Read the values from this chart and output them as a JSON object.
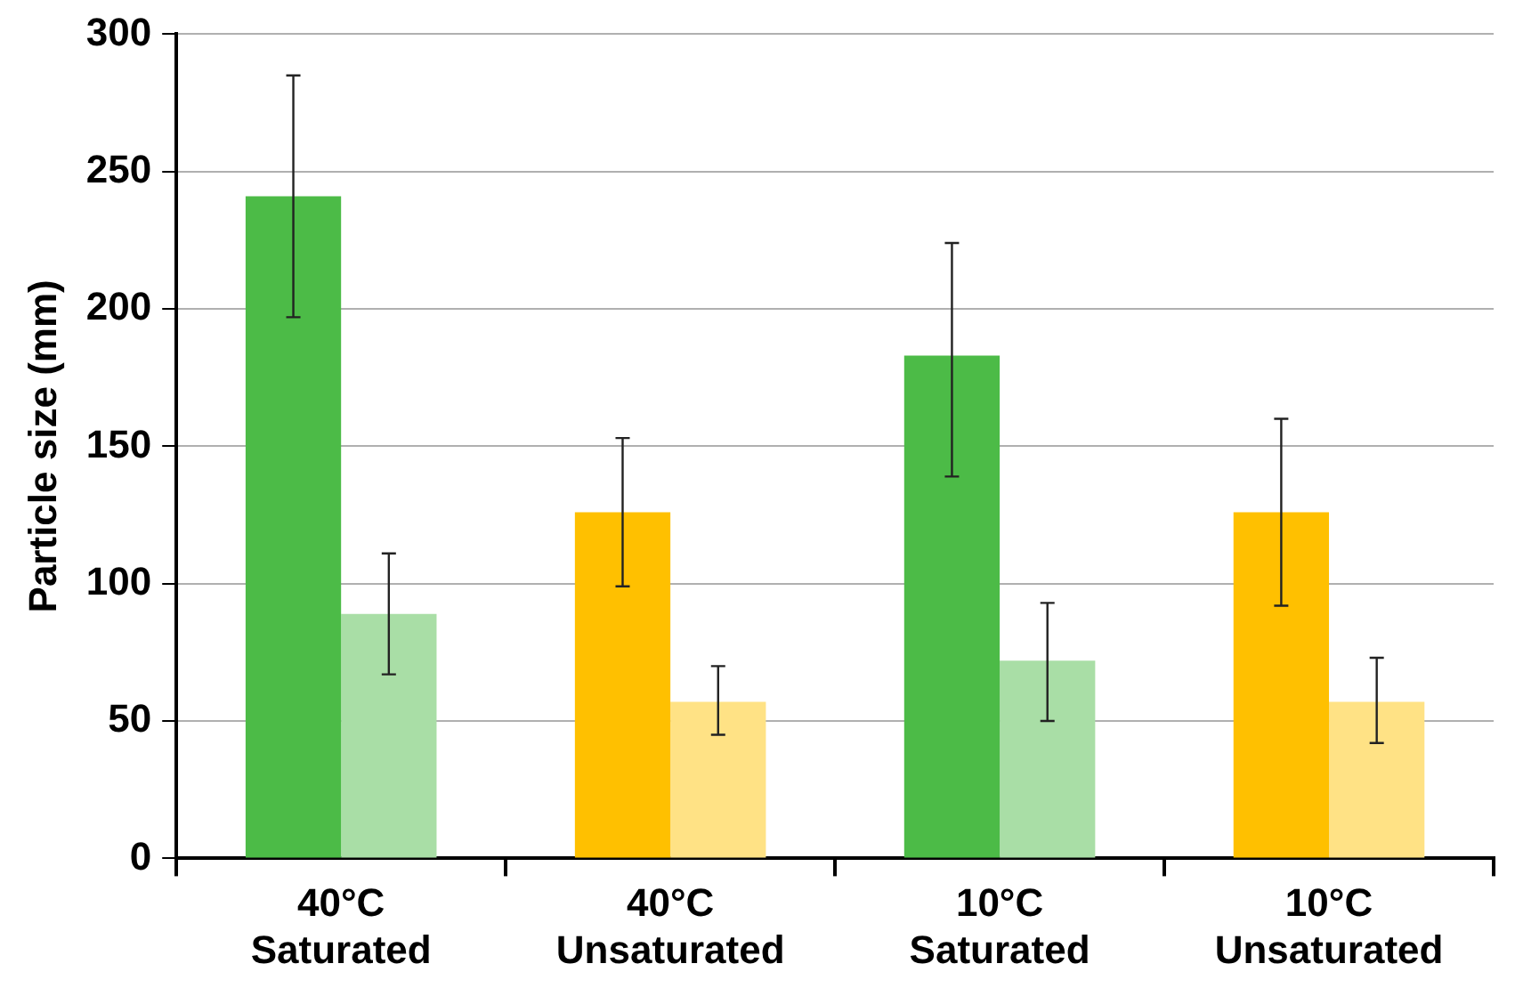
{
  "chart_data": {
    "type": "bar",
    "ylabel": "Particle size (mm)",
    "categories": [
      "40°C\nSaturated",
      "40°C\nUnsaturated",
      "10°C\nSaturated",
      "10°C\nUnsaturated"
    ],
    "series": [
      {
        "colors": [
          "#4cbb47",
          "#ffc000",
          "#4cbb47",
          "#ffc000"
        ],
        "values": [
          241,
          126,
          183,
          126
        ],
        "errors": [
          [
            197,
            285
          ],
          [
            99,
            153
          ],
          [
            139,
            224
          ],
          [
            92,
            160
          ]
        ]
      },
      {
        "colors": [
          "#a9deA6",
          "#ffe285",
          "#a9dea6",
          "#ffe285"
        ],
        "values": [
          89,
          57,
          72,
          57
        ],
        "errors": [
          [
            67,
            111
          ],
          [
            45,
            70
          ],
          [
            50,
            93
          ],
          [
            42,
            73
          ]
        ]
      }
    ],
    "ylim": [
      0,
      300
    ],
    "yticks": [
      0,
      50,
      100,
      150,
      200,
      250,
      300
    ],
    "grid": "y",
    "legend": false
  }
}
